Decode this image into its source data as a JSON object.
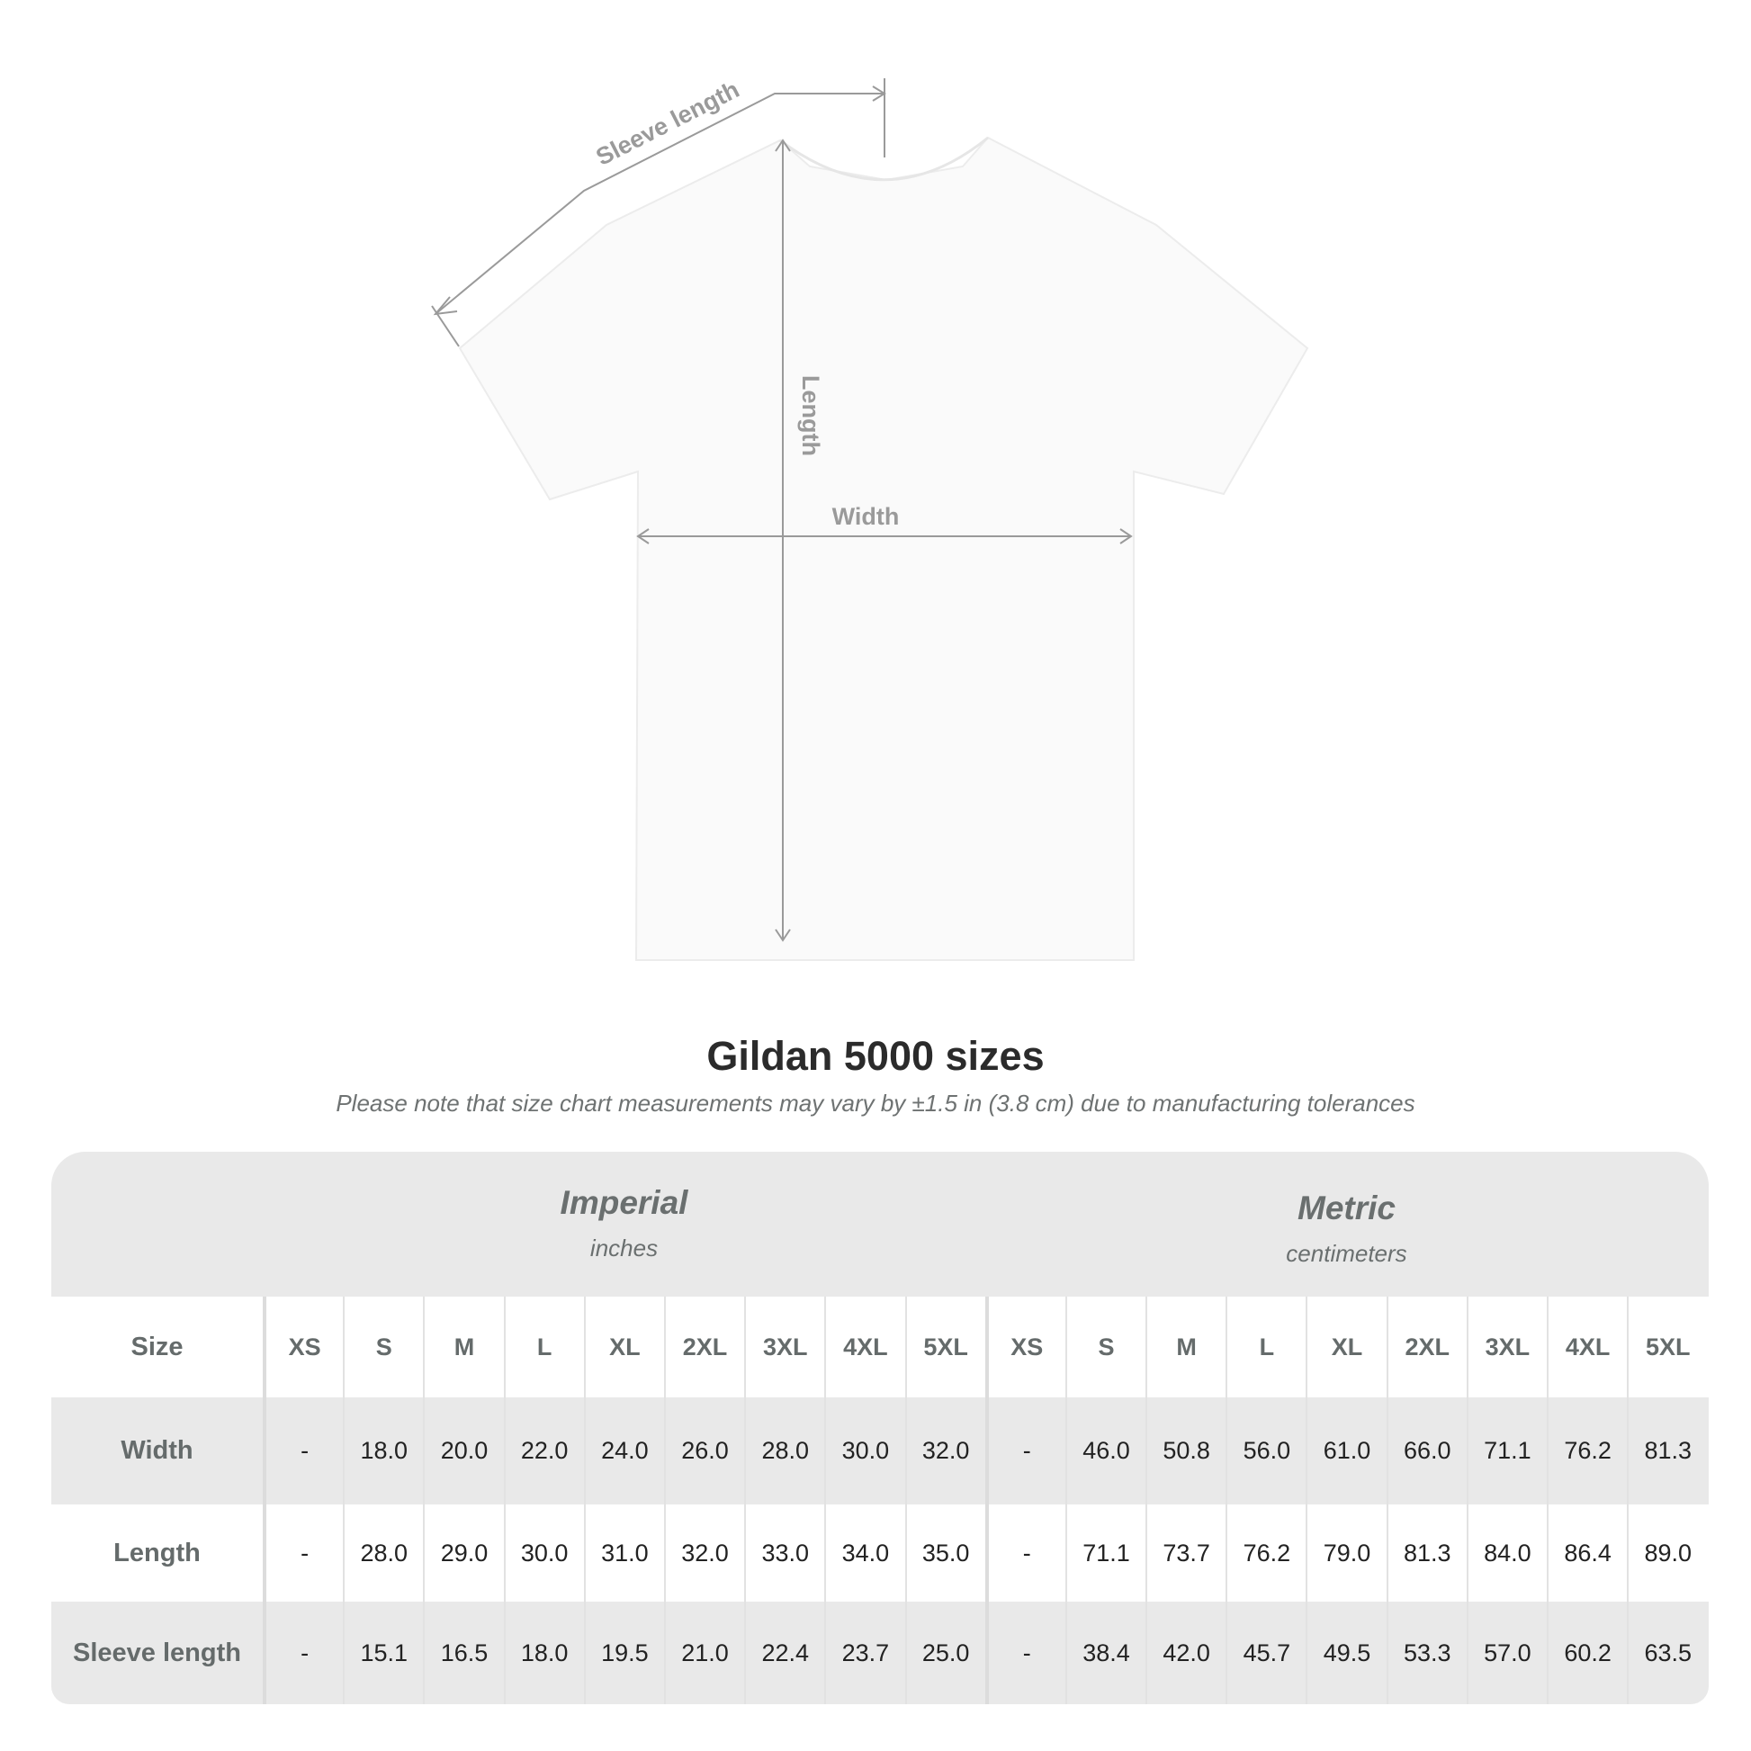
{
  "diagram": {
    "labels": {
      "sleeve": "Sleeve length",
      "length": "Length",
      "width": "Width"
    },
    "colors": {
      "shirt": "#fafafa",
      "measure_line": "#9a9a9a",
      "label": "#9a9a9a"
    }
  },
  "title": "Gildan 5000 sizes",
  "subtitle": "Please note that size chart measurements may vary by ±1.5 in (3.8 cm) due to manufacturing tolerances",
  "table": {
    "imperial": {
      "name": "Imperial",
      "unit": "inches"
    },
    "metric": {
      "name": "Metric",
      "unit": "centimeters"
    },
    "size_label": "Size",
    "sizes": [
      "XS",
      "S",
      "M",
      "L",
      "XL",
      "2XL",
      "3XL",
      "4XL",
      "5XL"
    ],
    "rows": [
      {
        "label": "Width",
        "imperial": [
          "-",
          "18.0",
          "20.0",
          "22.0",
          "24.0",
          "26.0",
          "28.0",
          "30.0",
          "32.0"
        ],
        "metric": [
          "-",
          "46.0",
          "50.8",
          "56.0",
          "61.0",
          "66.0",
          "71.1",
          "76.2",
          "81.3"
        ]
      },
      {
        "label": "Length",
        "imperial": [
          "-",
          "28.0",
          "29.0",
          "30.0",
          "31.0",
          "32.0",
          "33.0",
          "34.0",
          "35.0"
        ],
        "metric": [
          "-",
          "71.1",
          "73.7",
          "76.2",
          "79.0",
          "81.3",
          "84.0",
          "86.4",
          "89.0"
        ]
      },
      {
        "label": "Sleeve length",
        "imperial": [
          "-",
          "15.1",
          "16.5",
          "18.0",
          "19.5",
          "21.0",
          "22.4",
          "23.7",
          "25.0"
        ],
        "metric": [
          "-",
          "38.4",
          "42.0",
          "45.7",
          "49.5",
          "53.3",
          "57.0",
          "60.2",
          "63.5"
        ]
      }
    ]
  }
}
